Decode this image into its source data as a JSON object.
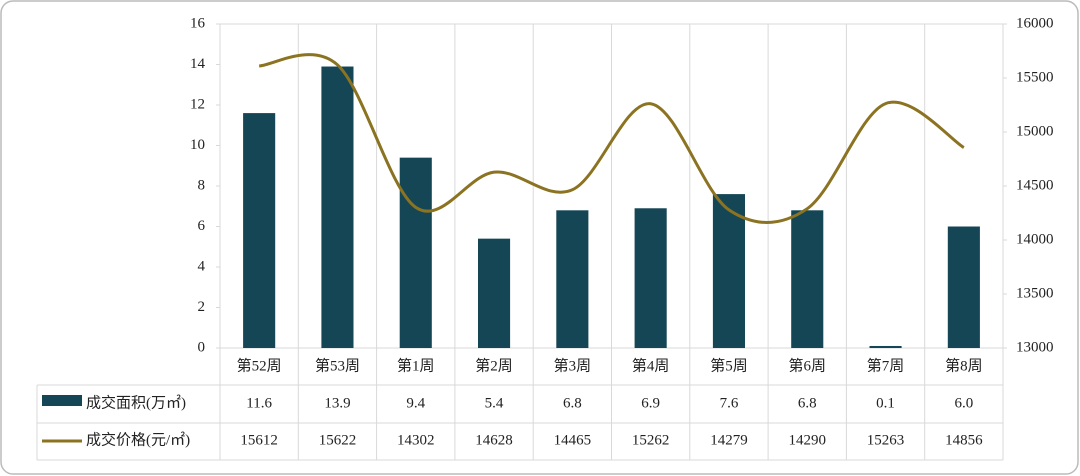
{
  "chart_data": {
    "type": "bar",
    "categories": [
      "第52周",
      "第53周",
      "第1周",
      "第2周",
      "第3周",
      "第4周",
      "第5周",
      "第6周",
      "第7周",
      "第8周"
    ],
    "series": [
      {
        "name": "成交面积(万㎡)",
        "color": "#154656",
        "type": "bar",
        "values": [
          11.6,
          13.9,
          9.4,
          5.4,
          6.8,
          6.9,
          7.6,
          6.8,
          0.1,
          6.0
        ],
        "value_labels": [
          "11.6",
          "13.9",
          "9.4",
          "5.4",
          "6.8",
          "6.9",
          "7.6",
          "6.8",
          "0.1",
          "6.0"
        ]
      },
      {
        "name": "成交价格(元/㎡)",
        "color": "#8b7322",
        "type": "line",
        "axis": "y2",
        "values": [
          15612,
          15622,
          14302,
          14628,
          14465,
          15262,
          14279,
          14290,
          15263,
          14856
        ]
      }
    ],
    "ylim": [
      0,
      16
    ],
    "yticks": [
      0,
      2,
      4,
      6,
      8,
      10,
      12,
      14,
      16
    ],
    "y2lim": [
      13000,
      16000
    ],
    "y2ticks": [
      13000,
      13500,
      14000,
      14500,
      15000,
      15500,
      16000
    ],
    "grid": true
  }
}
